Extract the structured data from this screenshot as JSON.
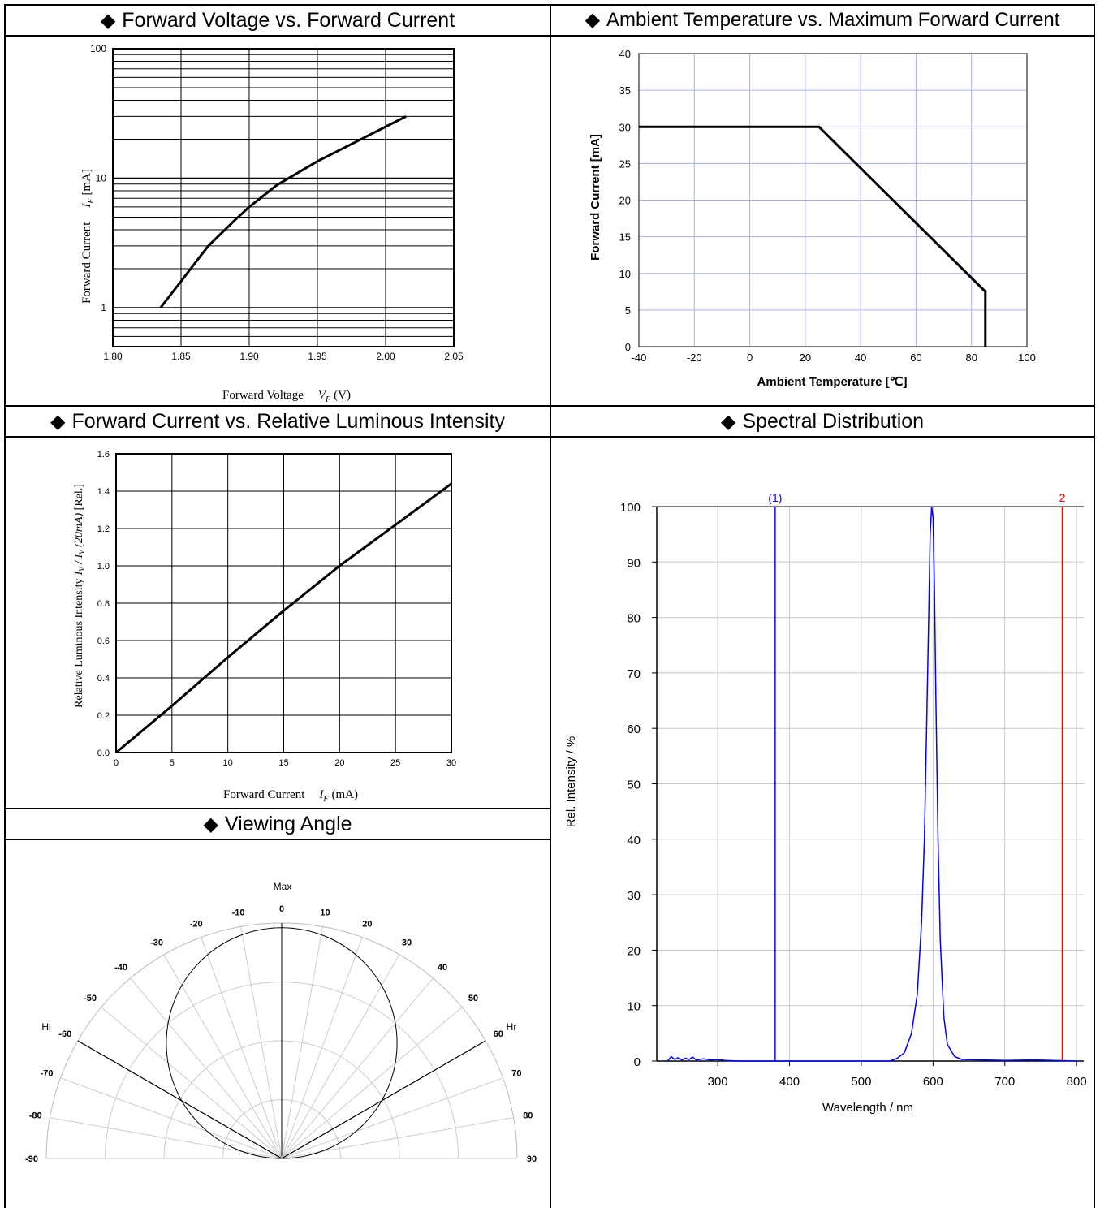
{
  "headers": {
    "forward_voltage": "Forward Voltage vs. Forward Current",
    "ambient_temp": "Ambient Temperature vs. Maximum Forward Current",
    "rel_luminous": "Forward Current vs. Relative Luminous Intensity",
    "spectral": "Spectral Distribution",
    "viewing_angle": "Viewing Angle",
    "bullet": "◆"
  },
  "chart_data": [
    {
      "id": "vf_if",
      "type": "line",
      "title": "Forward Voltage vs. Forward Current",
      "xlabel": "Forward Voltage",
      "xlabel_symbol": "V",
      "xlabel_subscript": "F",
      "xlabel_unit": "(V)",
      "ylabel": "Forward Current",
      "ylabel_symbol": "I",
      "ylabel_subscript": "F",
      "ylabel_unit": "[mA]",
      "xlim": [
        1.8,
        2.05
      ],
      "ylim": [
        0.5,
        100
      ],
      "yscale": "log",
      "x_ticks": [
        "1.80",
        "1.85",
        "1.90",
        "1.95",
        "2.00",
        "2.05"
      ],
      "y_ticks": [
        "1",
        "10",
        "100"
      ],
      "grid": true,
      "series": [
        {
          "x": [
            1.835,
            1.85,
            1.87,
            1.89,
            1.9,
            1.92,
            1.95,
            1.98,
            2.015
          ],
          "y": [
            1,
            1.6,
            3.0,
            4.8,
            6.0,
            8.8,
            13.5,
            19.5,
            30
          ]
        }
      ]
    },
    {
      "id": "ta_if",
      "type": "line",
      "title": "Ambient Temperature vs. Maximum Forward Current",
      "xlabel": "Ambient Temperature [℃]",
      "ylabel": "Forward Current [mA]",
      "xlim": [
        -40,
        100
      ],
      "ylim": [
        0,
        40
      ],
      "x_ticks": [
        "-40",
        "-20",
        "0",
        "20",
        "40",
        "60",
        "80",
        "100"
      ],
      "y_ticks": [
        "0",
        "5",
        "10",
        "15",
        "20",
        "25",
        "30",
        "35",
        "40"
      ],
      "grid": true,
      "grid_color": "#aab0ee",
      "series": [
        {
          "x": [
            -40,
            25,
            85,
            85
          ],
          "y": [
            30,
            30,
            7.5,
            0
          ]
        }
      ]
    },
    {
      "id": "if_iv",
      "type": "line",
      "title": "Forward Current vs. Relative Luminous Intensity",
      "xlabel": "Forward Current",
      "xlabel_symbol": "I",
      "xlabel_subscript": "F",
      "xlabel_unit": "(mA)",
      "ylabel": "Relative Luminous Intensity",
      "ylabel_expr": "I",
      "ylabel_sub1": "V",
      "ylabel_slash": " / I",
      "ylabel_sub2": "V",
      "ylabel_tail": " (20mA)",
      "ylabel_unit": " [Rel.]",
      "xlim": [
        0,
        30
      ],
      "ylim": [
        0,
        1.6
      ],
      "x_ticks": [
        "0",
        "5",
        "10",
        "15",
        "20",
        "25",
        "30"
      ],
      "y_ticks": [
        "0.0",
        "0.2",
        "0.4",
        "0.6",
        "0.8",
        "1.0",
        "1.2",
        "1.4",
        "1.6"
      ],
      "grid": true,
      "series": [
        {
          "x": [
            0,
            5,
            10,
            15,
            20,
            25,
            30
          ],
          "y": [
            0,
            0.25,
            0.51,
            0.76,
            1.0,
            1.22,
            1.44
          ]
        }
      ]
    },
    {
      "id": "spectrum",
      "type": "line",
      "title": "Spectral Distribution",
      "xlabel": "Wavelength / nm",
      "ylabel": "Rel. Intensity / %",
      "xlim": [
        215,
        810
      ],
      "ylim": [
        0,
        100
      ],
      "x_ticks": [
        "300",
        "400",
        "500",
        "600",
        "700",
        "800"
      ],
      "y_ticks": [
        "0",
        "10",
        "20",
        "30",
        "40",
        "50",
        "60",
        "70",
        "80",
        "90",
        "100"
      ],
      "grid": true,
      "markers": [
        {
          "label": "(1)",
          "x": 380,
          "color": "#0000ff"
        },
        {
          "label": "2",
          "x": 780,
          "color": "#ff0000"
        }
      ],
      "series": [
        {
          "color": "#0000ff",
          "x": [
            230,
            235,
            240,
            245,
            250,
            255,
            260,
            265,
            270,
            280,
            290,
            300,
            310,
            330,
            540,
            550,
            560,
            570,
            578,
            584,
            588,
            591,
            594,
            596,
            598,
            600,
            602,
            604,
            607,
            610,
            615,
            620,
            630,
            640,
            700,
            740,
            800
          ],
          "y": [
            0,
            0.8,
            0.3,
            0.6,
            0.2,
            0.5,
            0.3,
            0.7,
            0.2,
            0.4,
            0.2,
            0.3,
            0.1,
            0,
            0,
            0.5,
            1.5,
            5,
            12,
            25,
            40,
            60,
            80,
            95,
            100,
            98,
            85,
            65,
            40,
            22,
            8,
            3,
            0.8,
            0.3,
            0.1,
            0.2,
            0
          ]
        }
      ]
    },
    {
      "id": "viewing",
      "type": "polar",
      "title": "Viewing Angle",
      "labels": {
        "max": "Max",
        "left": "Hl",
        "right": "Hr"
      },
      "angle_ticks": [
        "-90",
        "-80",
        "-70",
        "-60",
        "-50",
        "-40",
        "-30",
        "-20",
        "-10",
        "0",
        "10",
        "20",
        "30",
        "40",
        "50",
        "60",
        "70",
        "80",
        "90"
      ],
      "half_angle": 60
    }
  ]
}
